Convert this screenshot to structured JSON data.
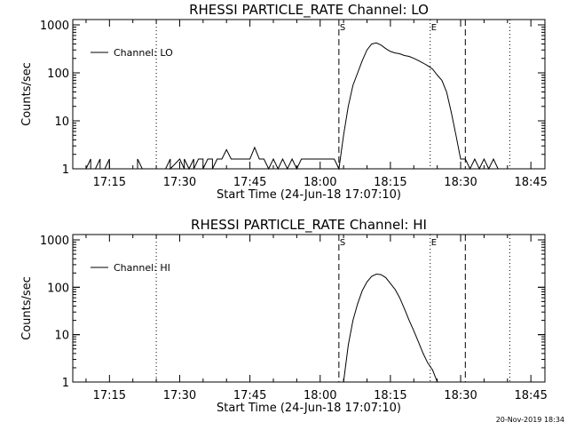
{
  "chart_data": [
    {
      "type": "line",
      "title": "RHESSI PARTICLE_RATE Channel: LO",
      "xlabel": "Start Time (24-Jun-18 17:07:10)",
      "ylabel": "Counts/sec",
      "yscale": "log",
      "ylim": [
        1,
        1000
      ],
      "xlim": [
        "17:07:10",
        "18:48:00"
      ],
      "xticks": [
        "17:15",
        "17:30",
        "17:45",
        "18:00",
        "18:15",
        "18:30",
        "18:45"
      ],
      "yticks": [
        "1",
        "10",
        "100",
        "1000"
      ],
      "legend": {
        "position": "top-left",
        "entries": [
          "Channel: LO"
        ]
      },
      "markers": [
        {
          "style": "dotted",
          "time": "17:25:00",
          "label": ""
        },
        {
          "style": "dashed",
          "time": "18:04:00",
          "label": "S"
        },
        {
          "style": "dotted",
          "time": "18:23:30",
          "label": "E"
        },
        {
          "style": "dashed",
          "time": "18:31:00",
          "label": ""
        },
        {
          "style": "dotted",
          "time": "18:40:30",
          "label": ""
        }
      ],
      "series": [
        {
          "name": "Channel: LO",
          "x": [
            "17:10",
            "17:11",
            "17:11",
            "17:12",
            "17:13",
            "17:13",
            "17:14",
            "17:15",
            "17:15",
            "17:16",
            "17:21",
            "17:21",
            "17:22",
            "17:27",
            "17:28",
            "17:28",
            "17:30",
            "17:31",
            "17:31",
            "17:32",
            "17:33",
            "17:33",
            "17:34",
            "17:35",
            "17:35",
            "17:36",
            "17:37",
            "17:37",
            "17:38",
            "17:39",
            "17:40",
            "17:41",
            "17:42",
            "17:43",
            "17:44",
            "17:45",
            "17:46",
            "17:47",
            "17:48",
            "17:49",
            "17:50",
            "17:51",
            "17:52",
            "17:53",
            "17:54",
            "17:55",
            "17:56",
            "17:57",
            "17:58",
            "17:59",
            "18:00",
            "18:01",
            "18:02",
            "18:03",
            "18:04",
            "18:05",
            "18:06",
            "18:07",
            "18:08",
            "18:09",
            "18:10",
            "18:11",
            "18:12",
            "18:13",
            "18:14",
            "18:15",
            "18:16",
            "18:17",
            "18:18",
            "18:19",
            "18:20",
            "18:21",
            "18:22",
            "18:23",
            "18:24",
            "18:25",
            "18:26",
            "18:27",
            "18:28",
            "18:29",
            "18:30",
            "18:31",
            "18:32",
            "18:33",
            "18:34",
            "18:35",
            "18:36",
            "18:37",
            "18:38"
          ],
          "y": [
            1,
            1.6,
            1,
            1,
            1.6,
            1,
            1,
            1.6,
            1,
            1,
            1,
            1.6,
            1,
            1,
            1.6,
            1,
            1.6,
            1,
            1.6,
            1,
            1.6,
            1,
            1.6,
            1.6,
            1,
            1.6,
            1.6,
            1,
            1.6,
            1.6,
            2.5,
            1.6,
            1.6,
            1.6,
            1.6,
            1.6,
            2.8,
            1.6,
            1.6,
            1,
            1.6,
            1,
            1.6,
            1,
            1.6,
            1,
            1.6,
            1.6,
            1.6,
            1.6,
            1.6,
            1.6,
            1.6,
            1.6,
            1,
            5,
            20,
            55,
            100,
            180,
            300,
            400,
            420,
            380,
            320,
            280,
            260,
            250,
            230,
            220,
            200,
            180,
            160,
            140,
            120,
            90,
            70,
            40,
            15,
            5,
            1.6,
            1.6,
            1,
            1.6,
            1,
            1.6,
            1,
            1.6,
            1
          ]
        }
      ]
    },
    {
      "type": "line",
      "title": "RHESSI PARTICLE_RATE Channel: HI",
      "xlabel": "Start Time (24-Jun-18 17:07:10)",
      "ylabel": "Counts/sec",
      "yscale": "log",
      "ylim": [
        1,
        1000
      ],
      "xlim": [
        "17:07:10",
        "18:48:00"
      ],
      "xticks": [
        "17:15",
        "17:30",
        "17:45",
        "18:00",
        "18:15",
        "18:30",
        "18:45"
      ],
      "yticks": [
        "1",
        "10",
        "100",
        "1000"
      ],
      "legend": {
        "position": "top-left",
        "entries": [
          "Channel: HI"
        ]
      },
      "markers": [
        {
          "style": "dotted",
          "time": "17:25:00",
          "label": ""
        },
        {
          "style": "dashed",
          "time": "18:04:00",
          "label": "S"
        },
        {
          "style": "dotted",
          "time": "18:23:30",
          "label": "E"
        },
        {
          "style": "dashed",
          "time": "18:31:00",
          "label": ""
        },
        {
          "style": "dotted",
          "time": "18:40:30",
          "label": ""
        }
      ],
      "series": [
        {
          "name": "Channel: HI",
          "x": [
            "18:05",
            "18:06",
            "18:07",
            "18:08",
            "18:09",
            "18:10",
            "18:11",
            "18:12",
            "18:13",
            "18:14",
            "18:15",
            "18:16",
            "18:17",
            "18:18",
            "18:19",
            "18:20",
            "18:21",
            "18:22",
            "18:23",
            "18:24",
            "18:25"
          ],
          "y": [
            1,
            6,
            20,
            45,
            85,
            130,
            170,
            190,
            185,
            160,
            120,
            90,
            60,
            35,
            20,
            12,
            7,
            4,
            2.5,
            1.8,
            1
          ]
        }
      ]
    }
  ],
  "footer": {
    "timestamp": "20-Nov-2019 18:34"
  }
}
